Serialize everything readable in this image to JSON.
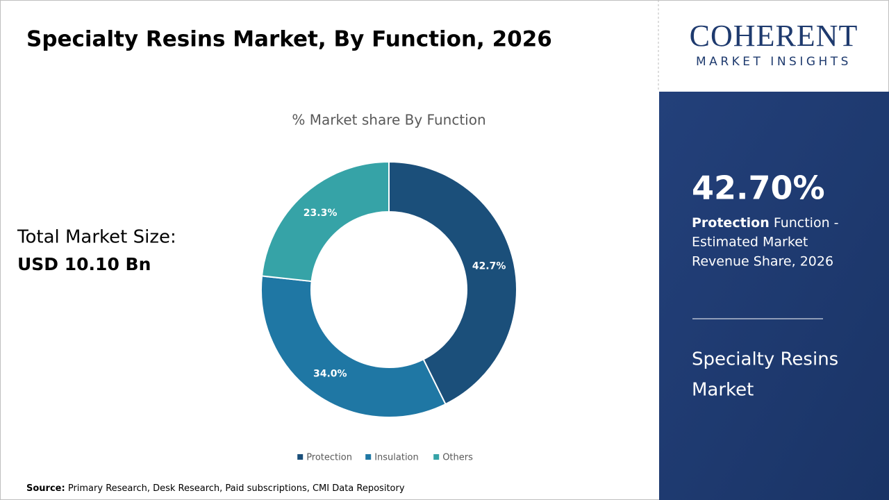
{
  "header": {
    "title": "Specialty Resins Market, By Function, 2026"
  },
  "total": {
    "label": "Total Market Size:",
    "value": "USD 10.10 Bn"
  },
  "logo": {
    "name": "COHERENT",
    "tagline": "MARKET INSIGHTS"
  },
  "panel": {
    "stat": "42.70%",
    "bold": "Protection",
    "lines": [
      "Function -",
      "Estimated Market",
      "Revenue Share, 2026"
    ],
    "market": [
      "Specialty Resins",
      "Market"
    ]
  },
  "source": {
    "label": "Source:",
    "text": "Primary Research, Desk Research, Paid subscriptions, CMI Data Repository"
  },
  "chart_data": {
    "type": "donut",
    "title": "% Market share By Function",
    "categories": [
      "Protection",
      "Insulation",
      "Others"
    ],
    "values": [
      42.7,
      34.0,
      23.3
    ],
    "value_labels": [
      "42.7%",
      "34.0%",
      "23.3%"
    ],
    "colors": [
      "#1b4f7a",
      "#1f77a4",
      "#36a3a7"
    ]
  }
}
